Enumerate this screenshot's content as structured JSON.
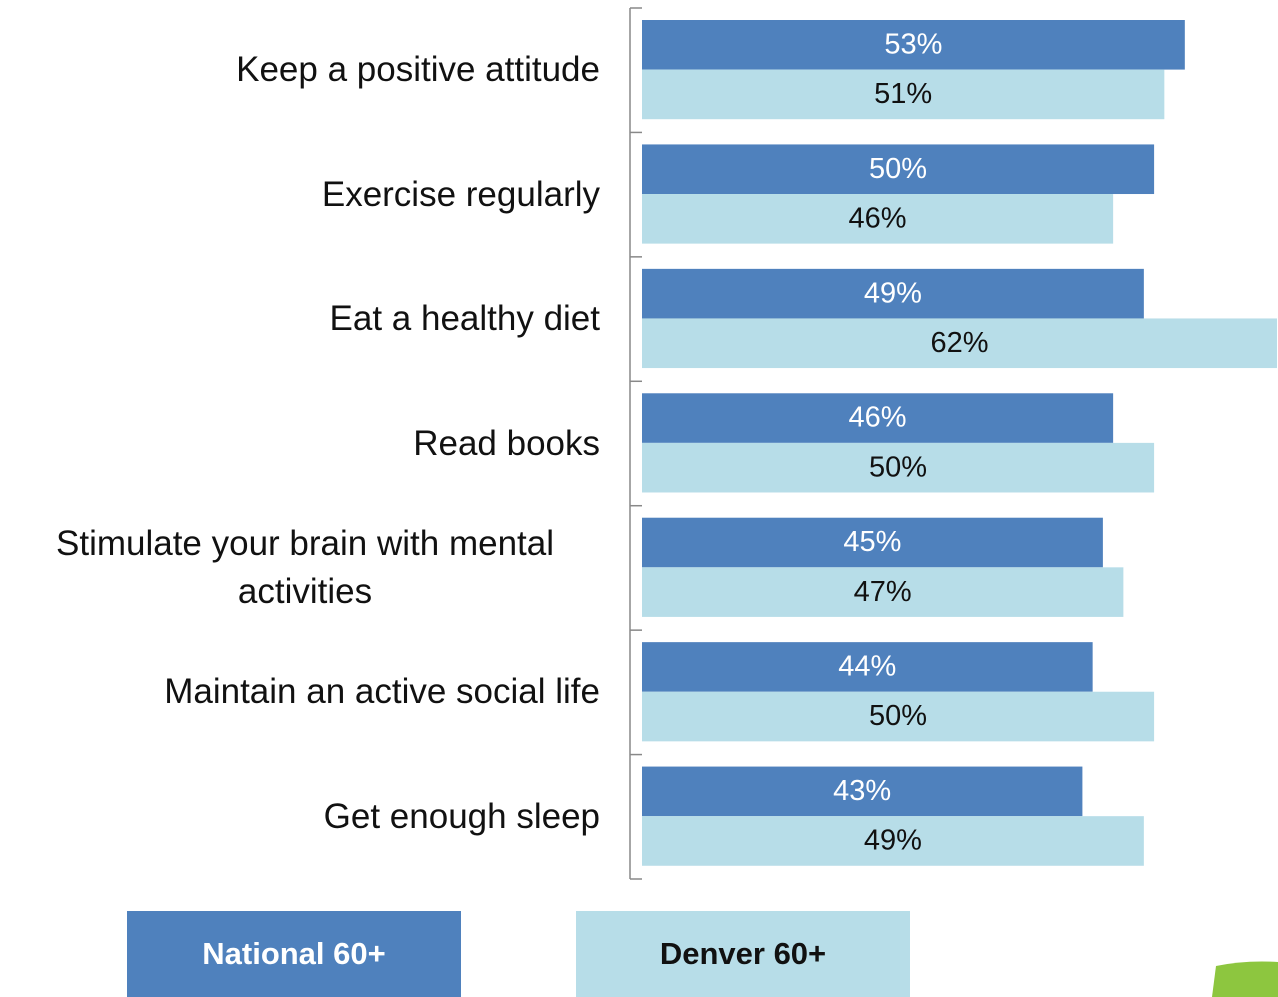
{
  "chart_data": {
    "type": "grouped-hbar",
    "categories": [
      "Keep a positive attitude",
      "Exercise regularly",
      "Eat a healthy diet",
      "Read books",
      "Stimulate your brain with mental activities",
      "Maintain an active social life",
      "Get enough sleep"
    ],
    "series": [
      {
        "name": "National 60+",
        "color": "#4f81bd",
        "values": [
          53,
          50,
          49,
          46,
          45,
          44,
          43
        ],
        "value_labels": [
          "53%",
          "50%",
          "49%",
          "46%",
          "45%",
          "44%",
          "43%"
        ]
      },
      {
        "name": "Denver 60+",
        "color": "#b7dde8",
        "values": [
          51,
          46,
          62,
          50,
          47,
          50,
          49
        ],
        "value_labels": [
          "51%",
          "46%",
          "62%",
          "50%",
          "47%",
          "50%",
          "49%"
        ]
      }
    ]
  }
}
